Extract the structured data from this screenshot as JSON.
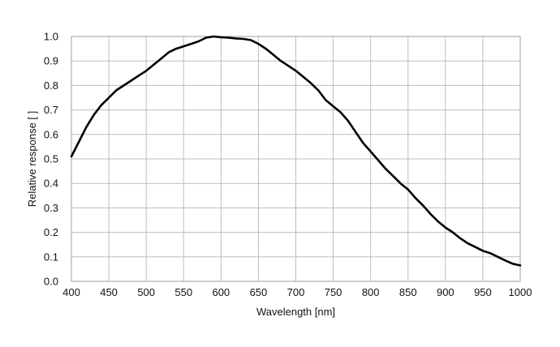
{
  "chart_data": {
    "type": "line",
    "xlabel": "Wavelength [nm]",
    "ylabel": "Relative response [ ]",
    "xlim": [
      400,
      1000
    ],
    "ylim": [
      0.0,
      1.0
    ],
    "x_ticks": [
      "400",
      "450",
      "500",
      "550",
      "600",
      "650",
      "700",
      "750",
      "800",
      "850",
      "900",
      "950",
      "1000"
    ],
    "y_ticks": [
      "0.0",
      "0.1",
      "0.2",
      "0.3",
      "0.4",
      "0.5",
      "0.6",
      "0.7",
      "0.8",
      "0.9",
      "1.0"
    ],
    "grid": true,
    "legend": "none",
    "series": [
      {
        "color": "#000000",
        "x": [
          400,
          410,
          420,
          430,
          440,
          450,
          460,
          470,
          480,
          490,
          500,
          510,
          520,
          530,
          540,
          550,
          560,
          570,
          580,
          590,
          600,
          610,
          620,
          630,
          640,
          650,
          660,
          670,
          680,
          690,
          700,
          710,
          720,
          730,
          740,
          750,
          760,
          770,
          780,
          790,
          800,
          810,
          820,
          830,
          840,
          850,
          860,
          870,
          880,
          890,
          900,
          910,
          920,
          930,
          940,
          950,
          960,
          970,
          980,
          990,
          1000
        ],
        "y": [
          0.51,
          0.57,
          0.63,
          0.68,
          0.72,
          0.75,
          0.78,
          0.8,
          0.82,
          0.84,
          0.86,
          0.885,
          0.91,
          0.935,
          0.95,
          0.96,
          0.97,
          0.98,
          0.995,
          1.0,
          0.997,
          0.995,
          0.992,
          0.99,
          0.985,
          0.97,
          0.95,
          0.925,
          0.9,
          0.88,
          0.86,
          0.835,
          0.81,
          0.78,
          0.74,
          0.715,
          0.69,
          0.655,
          0.61,
          0.565,
          0.53,
          0.495,
          0.46,
          0.43,
          0.4,
          0.375,
          0.34,
          0.31,
          0.275,
          0.245,
          0.22,
          0.2,
          0.175,
          0.155,
          0.14,
          0.125,
          0.115,
          0.1,
          0.085,
          0.072,
          0.065
        ]
      }
    ]
  }
}
